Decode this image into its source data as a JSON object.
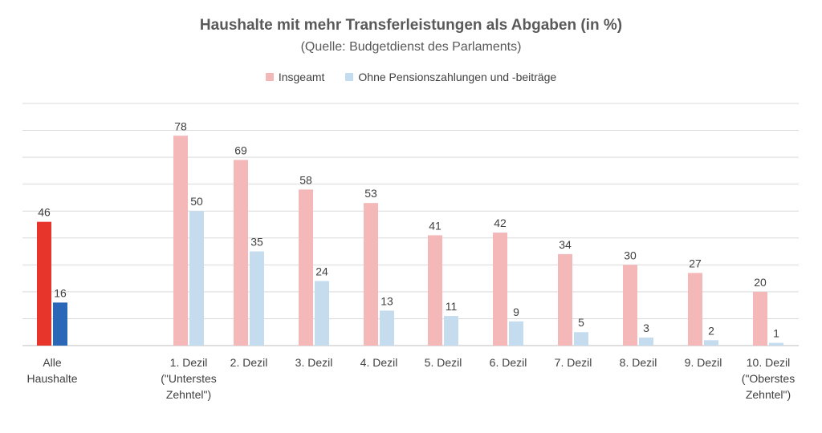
{
  "chart_data": {
    "type": "bar",
    "title": "Haushalte mit mehr Transferleistungen als Abgaben (in %)",
    "subtitle": "(Quelle: Budgetdienst des Parlaments)",
    "categories": [
      [
        "Alle",
        "Haushalte"
      ],
      [
        "1. Dezil",
        "(\"Unterstes",
        "Zehntel\")"
      ],
      [
        "2. Dezil"
      ],
      [
        "3. Dezil"
      ],
      [
        "4. Dezil"
      ],
      [
        "5. Dezil"
      ],
      [
        "6. Dezil"
      ],
      [
        "7. Dezil"
      ],
      [
        "8. Dezil"
      ],
      [
        "9. Dezil"
      ],
      [
        "10. Dezil",
        "(\"Oberstes",
        "Zehntel\")"
      ]
    ],
    "series": [
      {
        "name": "Insgeamt",
        "values": [
          46,
          78,
          69,
          58,
          53,
          41,
          42,
          34,
          30,
          27,
          20
        ],
        "color": "#f4b8b8",
        "highlight_color": "#e8352b"
      },
      {
        "name": "Ohne Pensionszahlungen und -beiträge",
        "values": [
          16,
          50,
          35,
          24,
          13,
          11,
          9,
          5,
          3,
          2,
          1
        ],
        "color": "#c5dcef",
        "highlight_color": "#2a68b7"
      }
    ],
    "highlight_category_index": 0,
    "ylim": [
      0,
      90
    ],
    "grid": true,
    "legend_position": "top-center",
    "gridline_color": "#d9d9d9"
  }
}
